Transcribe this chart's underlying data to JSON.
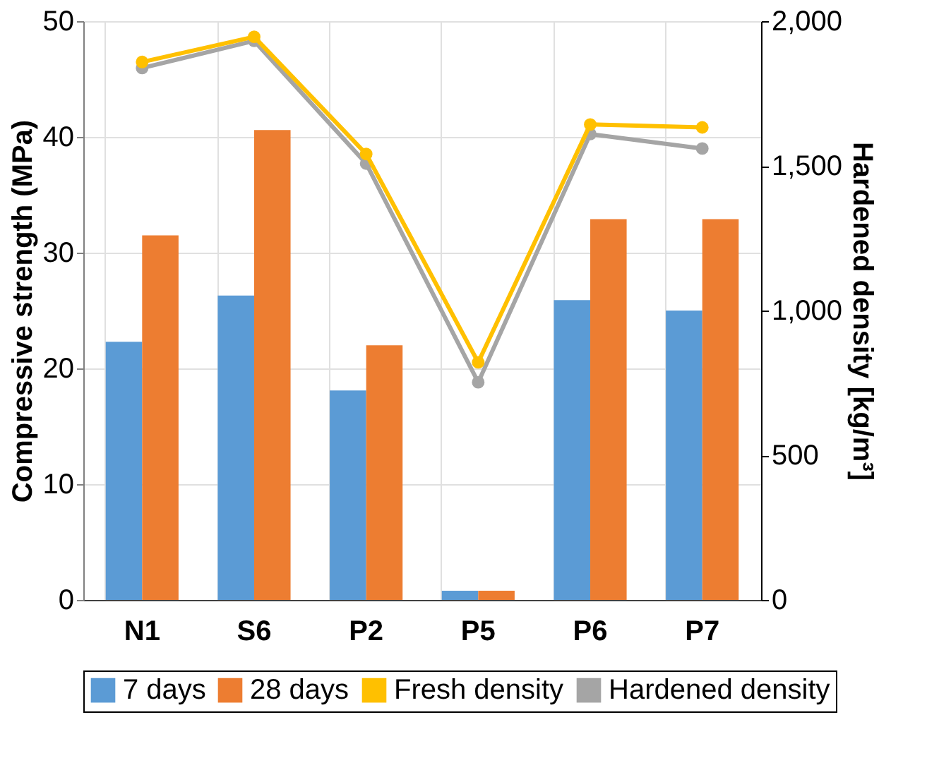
{
  "chart_data": {
    "type": "bar",
    "categories": [
      "N1",
      "S6",
      "P2",
      "P5",
      "P6",
      "P7"
    ],
    "ylabel": "Compressive strength (MPa)",
    "y2label": "Hardened density [kg/m³]",
    "ylim": [
      0,
      50
    ],
    "yticks": [
      0,
      10,
      20,
      30,
      40,
      50
    ],
    "y2lim": [
      0,
      2000
    ],
    "y2ticks": [
      {
        "value": 0,
        "label": "0"
      },
      {
        "value": 500,
        "label": "500"
      },
      {
        "value": 1000,
        "label": "1,000"
      },
      {
        "value": 1500,
        "label": "1,500"
      },
      {
        "value": 2000,
        "label": "2,000"
      }
    ],
    "grid": true,
    "legend": "bottom",
    "marker": "circle",
    "line_style": "solid",
    "series": [
      {
        "name": "7 days",
        "color": "#5b9bd5",
        "values": [
          22.3,
          26.3,
          18.1,
          0.8,
          25.9,
          25.0
        ]
      },
      {
        "name": "28 days",
        "color": "#ed7d31",
        "values": [
          31.5,
          40.6,
          22.0,
          0.8,
          32.9,
          32.9
        ]
      },
      {
        "name": "Fresh density",
        "color": "#ffc000",
        "type": "line",
        "axis": "y2",
        "values": [
          1859,
          1946,
          1541,
          821,
          1643,
          1633
        ]
      },
      {
        "name": "Hardened density",
        "color": "#a5a5a5",
        "type": "line",
        "axis": "y2",
        "values": [
          1838,
          1932,
          1508,
          752,
          1610,
          1560
        ]
      }
    ]
  }
}
